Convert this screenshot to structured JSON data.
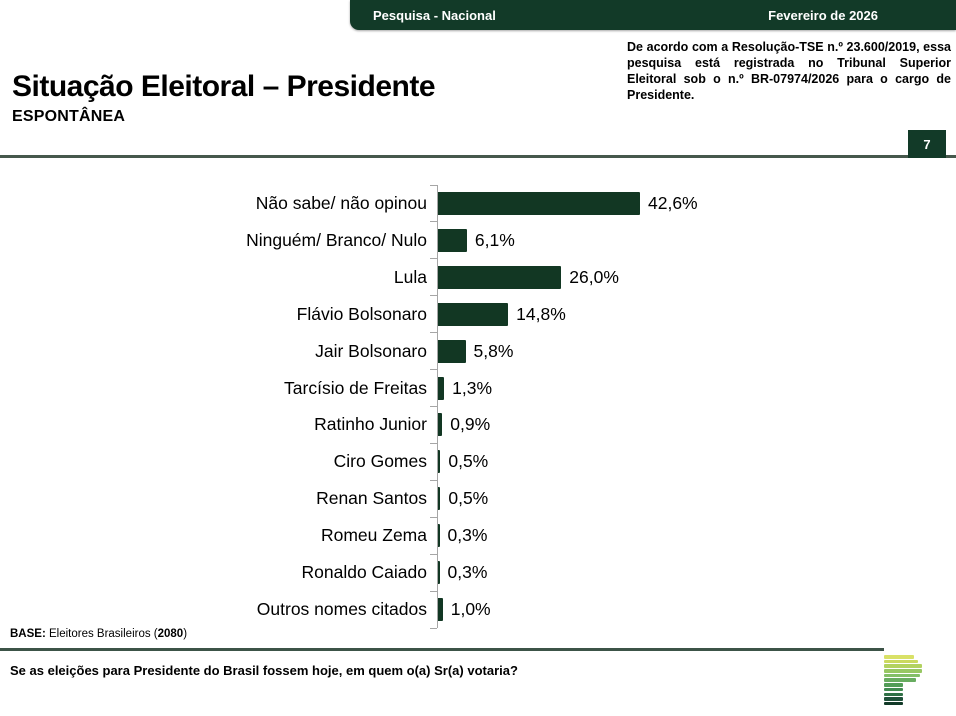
{
  "top_band": {
    "left_label": "Pesquisa - Nacional",
    "right_label": "Fevereiro de 2026"
  },
  "title": {
    "main": "Situação Eleitoral – Presidente",
    "subtitle": "ESPONTÂNEA"
  },
  "registration_notice": "De acordo com a Resolução-TSE n.º 23.600/2019, essa pesquisa está registrada no Tribunal Superior Eleitoral sob o n.º BR-07974/2026 para o cargo de Presidente.",
  "page_number": "7",
  "chart_data": {
    "type": "bar",
    "orientation": "horizontal",
    "title": "",
    "categories": [
      "Não sabe/ não opinou",
      "Ninguém/ Branco/ Nulo",
      "Lula",
      "Flávio Bolsonaro",
      "Jair Bolsonaro",
      "Tarcísio de Freitas",
      "Ratinho Junior",
      "Ciro Gomes",
      "Renan Santos",
      "Romeu Zema",
      "Ronaldo Caiado",
      "Outros nomes citados"
    ],
    "values": [
      42.6,
      6.1,
      26.0,
      14.8,
      5.8,
      1.3,
      0.9,
      0.5,
      0.5,
      0.3,
      0.3,
      1.0
    ],
    "value_labels": [
      "42,6%",
      "6,1%",
      "26,0%",
      "14,8%",
      "5,8%",
      "1,3%",
      "0,9%",
      "0,5%",
      "0,5%",
      "0,3%",
      "0,3%",
      "1,0%"
    ],
    "xlim": [
      0,
      45
    ],
    "bar_color": "#123723",
    "axis_color": "#a6a6a6",
    "grid": false,
    "legend": false
  },
  "footer": {
    "base_label": "BASE:",
    "base_text_before": " Eleitores Brasileiros (",
    "base_n": "2080",
    "base_text_after": ")",
    "question": "Se as eleições para Presidente do Brasil fossem hoje, em quem o(a) Sr(a) votaria?"
  },
  "colors": {
    "band": "#123a28",
    "bar": "#123723",
    "rule_top": "#46584c",
    "rule_bottom": "#3c5347"
  },
  "logo_bars": [
    {
      "color": "#d9e167",
      "w": 30
    },
    {
      "color": "#cbd95f",
      "w": 34
    },
    {
      "color": "#b3d260",
      "w": 38
    },
    {
      "color": "#97c763",
      "w": 38
    },
    {
      "color": "#83bf67",
      "w": 36
    },
    {
      "color": "#68ac60",
      "w": 32
    },
    {
      "color": "#529c57",
      "w": 19
    },
    {
      "color": "#418a50",
      "w": 19
    },
    {
      "color": "#2f7046",
      "w": 19
    },
    {
      "color": "#20513a",
      "w": 19
    },
    {
      "color": "#123a28",
      "w": 19
    }
  ]
}
